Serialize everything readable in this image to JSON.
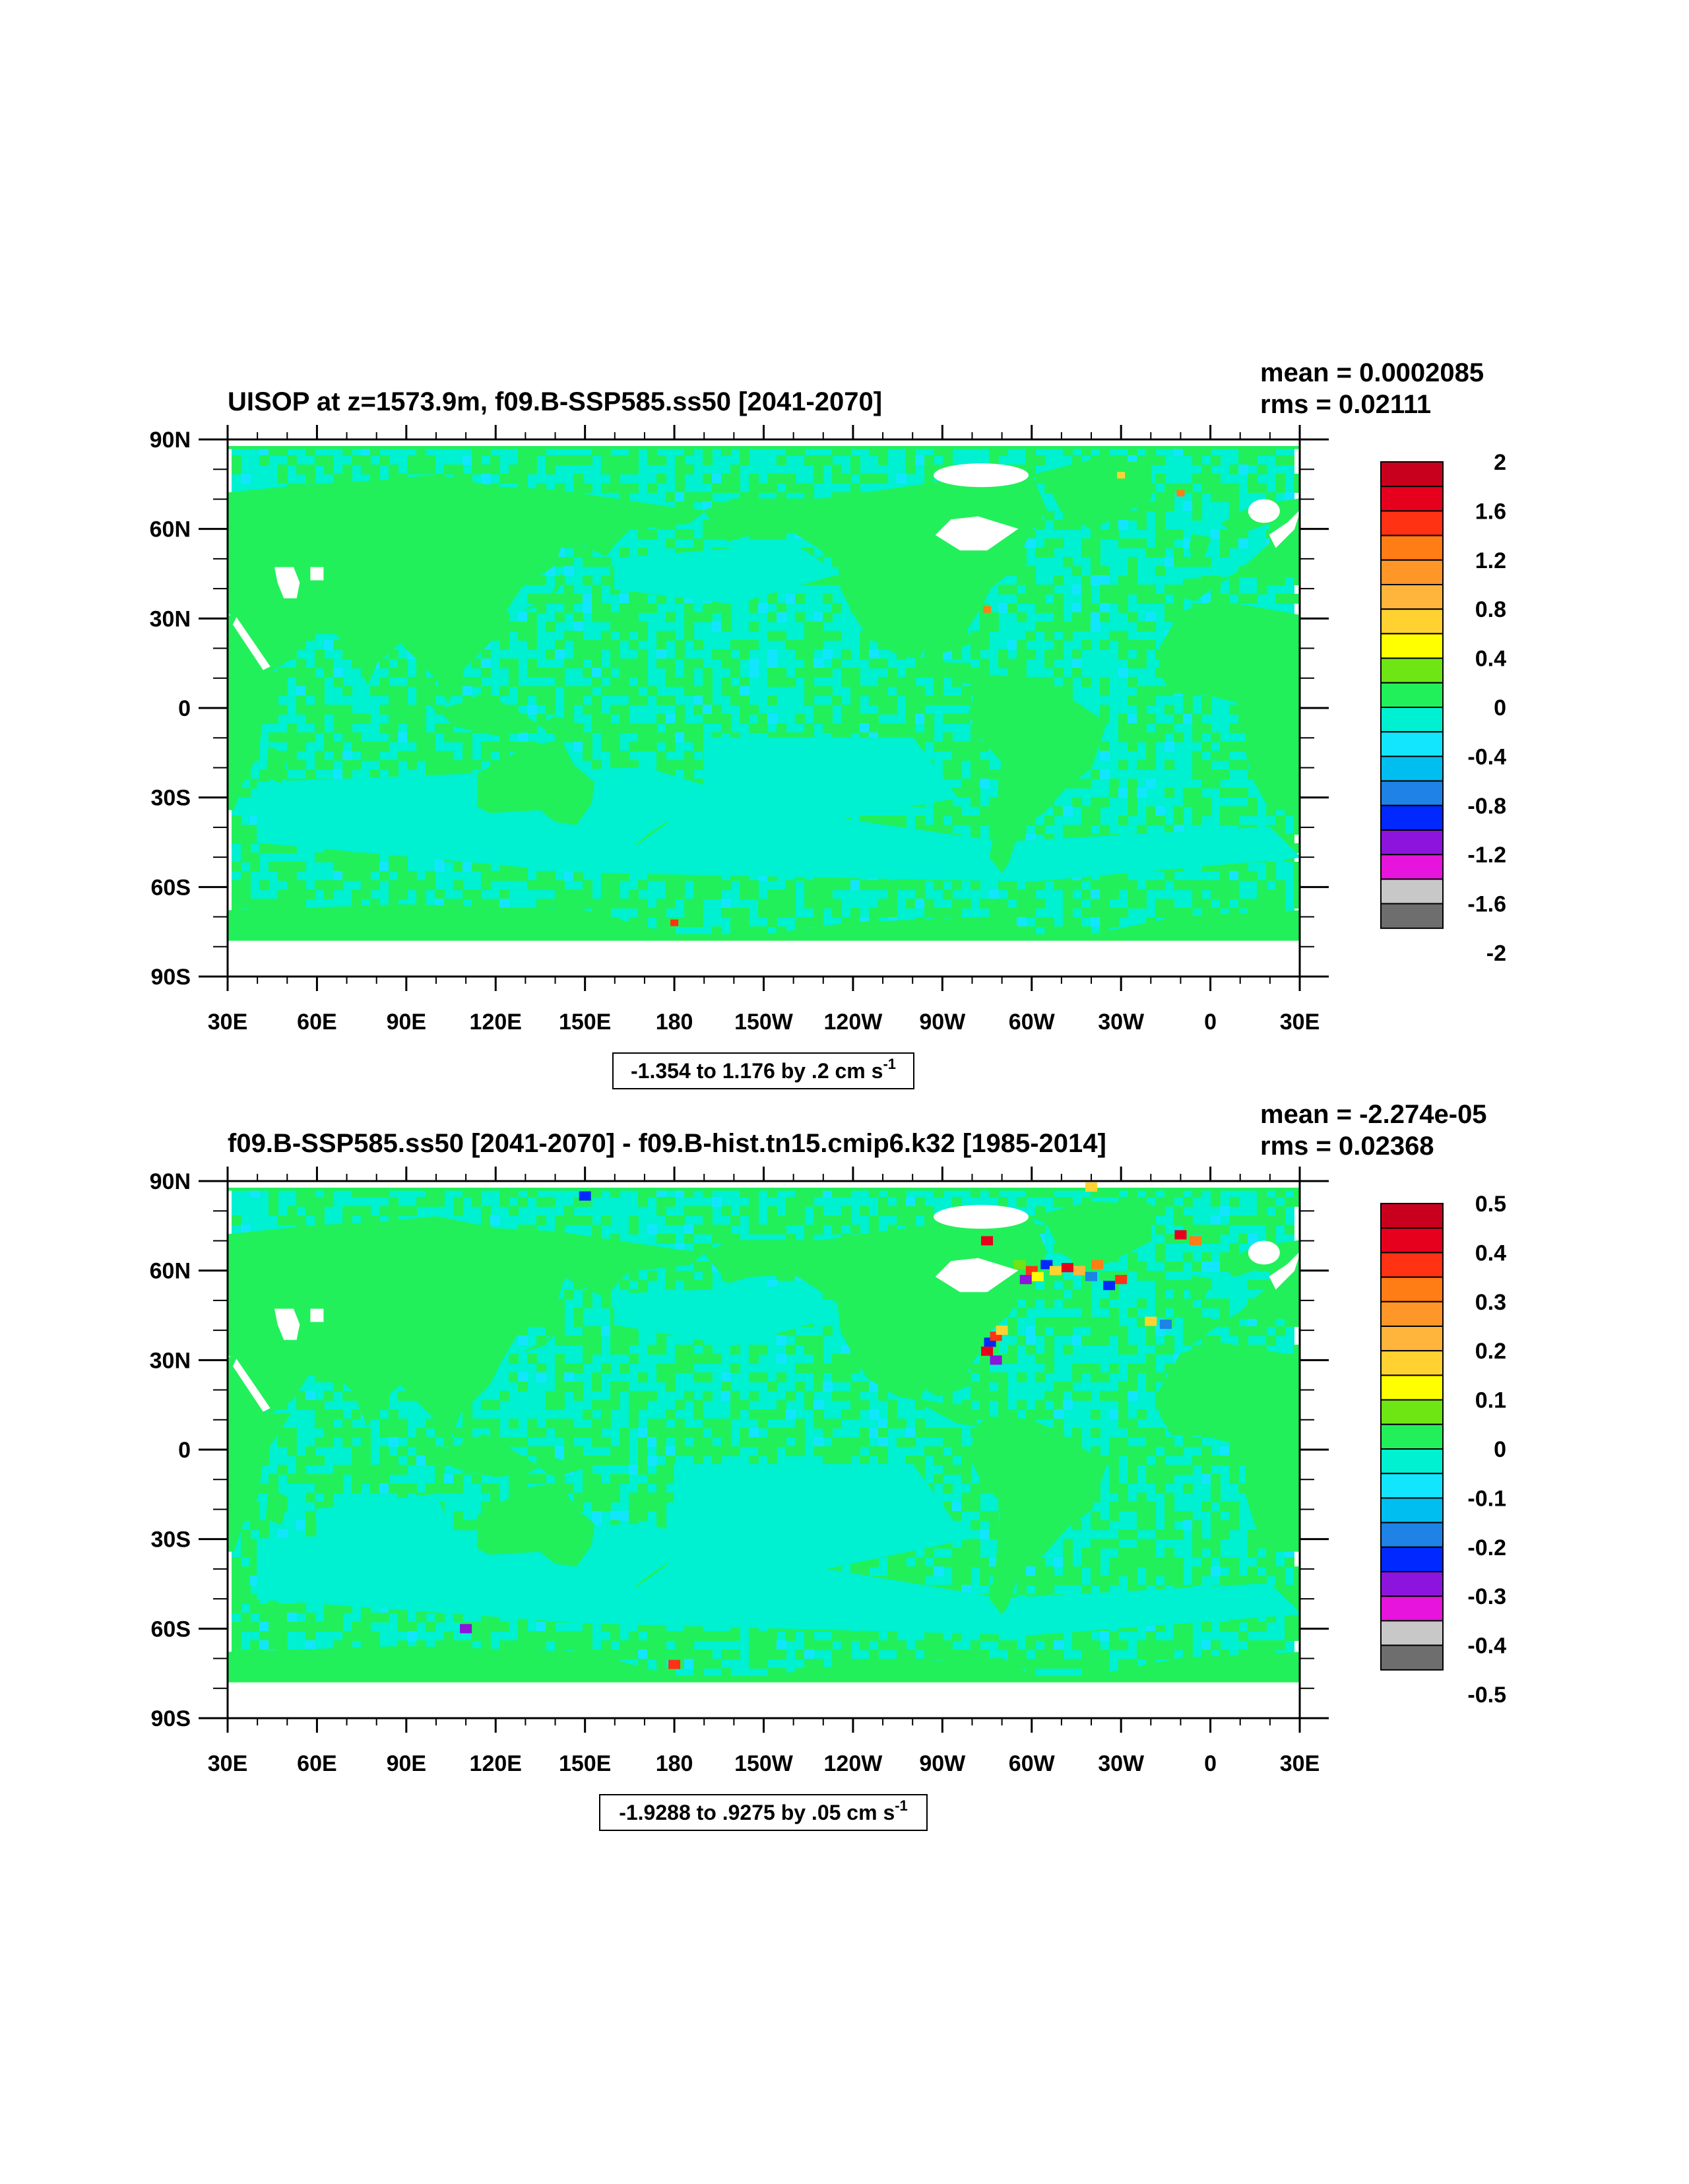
{
  "colors": {
    "ocean_green": "#22f05a",
    "cyan_low": "#00f0d2",
    "cyan_mid": "#12e6ff",
    "missing": "#ffffff",
    "levels": [
      "#c8001e",
      "#e6001e",
      "#ff3214",
      "#ff7d14",
      "#ff9628",
      "#ffb43c",
      "#ffd232",
      "#ffff00",
      "#6ee614",
      "#22f05a",
      "#00f0d2",
      "#12e6ff",
      "#00bef0",
      "#1e82e6",
      "#0028ff",
      "#8c14dc",
      "#e614dc",
      "#c8c8c8",
      "#6e6e6e"
    ]
  },
  "chart_data": [
    {
      "type": "heatmap",
      "title": "UISOP at z=1573.9m, f09.B-SSP585.ss50 [2041-2070]",
      "stats": {
        "mean": "mean = 0.0002085",
        "rms": "rms = 0.02111"
      },
      "x_ticks": [
        "30E",
        "60E",
        "90E",
        "120E",
        "150E",
        "180",
        "150W",
        "120W",
        "90W",
        "60W",
        "30W",
        "0",
        "30E"
      ],
      "y_ticks": [
        "90N",
        "60N",
        "30N",
        "0",
        "30S",
        "60S",
        "90S"
      ],
      "xlim": [
        30,
        390
      ],
      "ylim": [
        -90,
        90
      ],
      "colorbar_labels": [
        "2",
        "1.6",
        "1.2",
        "0.8",
        "0.4",
        "0",
        "-0.4",
        "-0.8",
        "-1.2",
        "-1.6",
        "-2"
      ],
      "range_text": "-1.354 to 1.176 by .2 cm s",
      "range_sup": "-1"
    },
    {
      "type": "heatmap",
      "title": "f09.B-SSP585.ss50 [2041-2070] - f09.B-hist.tn15.cmip6.k32 [1985-2014]",
      "stats": {
        "mean": "mean = -2.274e-05",
        "rms": "rms = 0.02368"
      },
      "x_ticks": [
        "30E",
        "60E",
        "90E",
        "120E",
        "150E",
        "180",
        "150W",
        "120W",
        "90W",
        "60W",
        "30W",
        "0",
        "30E"
      ],
      "y_ticks": [
        "90N",
        "60N",
        "30N",
        "0",
        "30S",
        "60S",
        "90S"
      ],
      "xlim": [
        30,
        390
      ],
      "ylim": [
        -90,
        90
      ],
      "colorbar_labels": [
        "0.5",
        "0.4",
        "0.3",
        "0.2",
        "0.1",
        "0",
        "-0.1",
        "-0.2",
        "-0.3",
        "-0.4",
        "-0.5"
      ],
      "range_text": "-1.9288 to .9275 by .05 cm s",
      "range_sup": "-1"
    }
  ]
}
